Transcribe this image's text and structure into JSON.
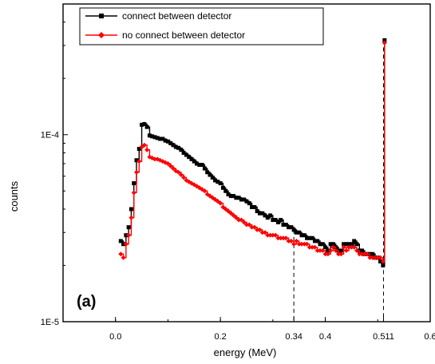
{
  "chart_data": {
    "type": "line",
    "title": "",
    "panel_label": "(a)",
    "xlabel": "energy (MeV)",
    "ylabel": "counts",
    "xlim": [
      -0.1,
      0.6
    ],
    "ylim": [
      1e-05,
      0.0005
    ],
    "yscale": "log",
    "x_ticks": [
      0.0,
      0.2,
      0.34,
      0.4,
      0.511,
      0.6
    ],
    "x_tick_labels": [
      "0.0",
      "0.2",
      "0.34",
      "0.4",
      "0.511",
      "0.6"
    ],
    "y_ticks": [
      1e-05,
      0.0001
    ],
    "y_tick_labels": [
      "1E-5",
      "1E-4"
    ],
    "legend_position": "top-left",
    "markers": [
      {
        "x": 0.34,
        "label": "0.34"
      },
      {
        "x": 0.511,
        "label": "0.511"
      }
    ],
    "series": [
      {
        "name": "connect between detector",
        "color": "#000000",
        "marker": "square",
        "x": [
          0.01,
          0.015,
          0.02,
          0.025,
          0.03,
          0.035,
          0.04,
          0.045,
          0.05,
          0.055,
          0.06,
          0.065,
          0.07,
          0.075,
          0.08,
          0.085,
          0.09,
          0.095,
          0.1,
          0.105,
          0.11,
          0.115,
          0.12,
          0.125,
          0.13,
          0.135,
          0.14,
          0.145,
          0.15,
          0.155,
          0.16,
          0.165,
          0.17,
          0.175,
          0.18,
          0.185,
          0.19,
          0.195,
          0.2,
          0.205,
          0.21,
          0.215,
          0.22,
          0.225,
          0.23,
          0.235,
          0.24,
          0.245,
          0.25,
          0.255,
          0.26,
          0.265,
          0.27,
          0.275,
          0.28,
          0.285,
          0.29,
          0.295,
          0.3,
          0.305,
          0.31,
          0.315,
          0.32,
          0.325,
          0.33,
          0.335,
          0.34,
          0.345,
          0.35,
          0.355,
          0.36,
          0.365,
          0.37,
          0.375,
          0.38,
          0.385,
          0.39,
          0.395,
          0.4,
          0.405,
          0.41,
          0.415,
          0.42,
          0.425,
          0.43,
          0.435,
          0.44,
          0.445,
          0.45,
          0.455,
          0.46,
          0.465,
          0.47,
          0.475,
          0.48,
          0.485,
          0.49,
          0.495,
          0.5,
          0.505,
          0.51,
          0.513
        ],
        "y": [
          2.7e-05,
          2.6e-05,
          2.9e-05,
          3.2e-05,
          4e-05,
          5.5e-05,
          7.3e-05,
          8.4e-05,
          0.000113,
          0.000114,
          0.00011,
          9.9e-05,
          9.8e-05,
          9.7e-05,
          9.6e-05,
          9.5e-05,
          9.5e-05,
          9.3e-05,
          9.2e-05,
          9e-05,
          8.8e-05,
          8.6e-05,
          8.5e-05,
          8.3e-05,
          8e-05,
          7.8e-05,
          7.6e-05,
          7.4e-05,
          7.2e-05,
          7e-05,
          6.9e-05,
          6.9e-05,
          6.6e-05,
          6.3e-05,
          6.1e-05,
          5.9e-05,
          5.7e-05,
          5.6e-05,
          5.5e-05,
          5.2e-05,
          5e-05,
          4.8e-05,
          4.7e-05,
          4.7e-05,
          4.6e-05,
          4.6e-05,
          4.5e-05,
          4.5e-05,
          4.4e-05,
          4.3e-05,
          4.1e-05,
          4.1e-05,
          3.9e-05,
          3.8e-05,
          3.8e-05,
          3.7e-05,
          3.6e-05,
          3.7e-05,
          3.5e-05,
          3.5e-05,
          3.4e-05,
          3.5e-05,
          3.3e-05,
          3.3e-05,
          3.2e-05,
          3.2e-05,
          3.1e-05,
          3e-05,
          3e-05,
          2.9e-05,
          2.9e-05,
          2.8e-05,
          2.8e-05,
          2.8e-05,
          2.7e-05,
          2.7e-05,
          2.6e-05,
          2.6e-05,
          2.5e-05,
          2.4e-05,
          2.6e-05,
          2.6e-05,
          2.5e-05,
          2.4e-05,
          2.4e-05,
          2.6e-05,
          2.6e-05,
          2.6e-05,
          2.6e-05,
          2.7e-05,
          2.6e-05,
          2.4e-05,
          2.4e-05,
          2.3e-05,
          2.3e-05,
          2.3e-05,
          2.3e-05,
          2.2e-05,
          2.2e-05,
          2.1e-05,
          2e-05,
          0.00032
        ]
      },
      {
        "name": "no connect between detector",
        "color": "#ff0000",
        "marker": "diamond",
        "x": [
          0.01,
          0.015,
          0.02,
          0.025,
          0.03,
          0.035,
          0.04,
          0.045,
          0.05,
          0.055,
          0.06,
          0.065,
          0.07,
          0.075,
          0.08,
          0.085,
          0.09,
          0.095,
          0.1,
          0.105,
          0.11,
          0.115,
          0.12,
          0.125,
          0.13,
          0.135,
          0.14,
          0.145,
          0.15,
          0.155,
          0.16,
          0.165,
          0.17,
          0.175,
          0.18,
          0.185,
          0.19,
          0.195,
          0.2,
          0.205,
          0.21,
          0.215,
          0.22,
          0.225,
          0.23,
          0.235,
          0.24,
          0.245,
          0.25,
          0.255,
          0.26,
          0.265,
          0.27,
          0.275,
          0.28,
          0.285,
          0.29,
          0.295,
          0.3,
          0.305,
          0.31,
          0.315,
          0.32,
          0.325,
          0.33,
          0.335,
          0.34,
          0.345,
          0.35,
          0.355,
          0.36,
          0.365,
          0.37,
          0.375,
          0.38,
          0.385,
          0.39,
          0.395,
          0.4,
          0.405,
          0.41,
          0.415,
          0.42,
          0.425,
          0.43,
          0.435,
          0.44,
          0.445,
          0.45,
          0.455,
          0.46,
          0.465,
          0.47,
          0.475,
          0.48,
          0.485,
          0.49,
          0.495,
          0.5,
          0.505,
          0.51,
          0.513
        ],
        "y": [
          2.3e-05,
          2.2e-05,
          2.6e-05,
          2.9e-05,
          3.6e-05,
          4.9e-05,
          6.3e-05,
          7.2e-05,
          8.6e-05,
          8.8e-05,
          8.3e-05,
          7.6e-05,
          7.5e-05,
          7.4e-05,
          7.4e-05,
          7.3e-05,
          7.2e-05,
          7.1e-05,
          7e-05,
          6.8e-05,
          6.6e-05,
          6.4e-05,
          6.3e-05,
          6.1e-05,
          5.9e-05,
          5.7e-05,
          5.6e-05,
          5.5e-05,
          5.4e-05,
          5.3e-05,
          5.2e-05,
          5.1e-05,
          5e-05,
          4.8e-05,
          4.7e-05,
          4.6e-05,
          4.5e-05,
          4.4e-05,
          4.3e-05,
          4.1e-05,
          4e-05,
          3.9e-05,
          3.8e-05,
          3.7e-05,
          3.6e-05,
          3.5e-05,
          3.5e-05,
          3.4e-05,
          3.3e-05,
          3.3e-05,
          3.2e-05,
          3.2e-05,
          3.1e-05,
          3.1e-05,
          3e-05,
          3e-05,
          2.9e-05,
          2.9e-05,
          2.9e-05,
          2.9e-05,
          2.8e-05,
          2.8e-05,
          2.8e-05,
          2.8e-05,
          2.7e-05,
          2.7e-05,
          2.6e-05,
          2.7e-05,
          2.6e-05,
          2.6e-05,
          2.6e-05,
          2.6e-05,
          2.5e-05,
          2.5e-05,
          2.5e-05,
          2.4e-05,
          2.4e-05,
          2.4e-05,
          2.3e-05,
          2.3e-05,
          2.4e-05,
          2.5e-05,
          2.4e-05,
          2.3e-05,
          2.3e-05,
          2.5e-05,
          2.4e-05,
          2.5e-05,
          2.5e-05,
          2.5e-05,
          2.4e-05,
          2.3e-05,
          2.3e-05,
          2.3e-05,
          2.3e-05,
          2.2e-05,
          2.2e-05,
          2.2e-05,
          2.2e-05,
          2.2e-05,
          2.1e-05,
          0.00031
        ]
      }
    ]
  }
}
